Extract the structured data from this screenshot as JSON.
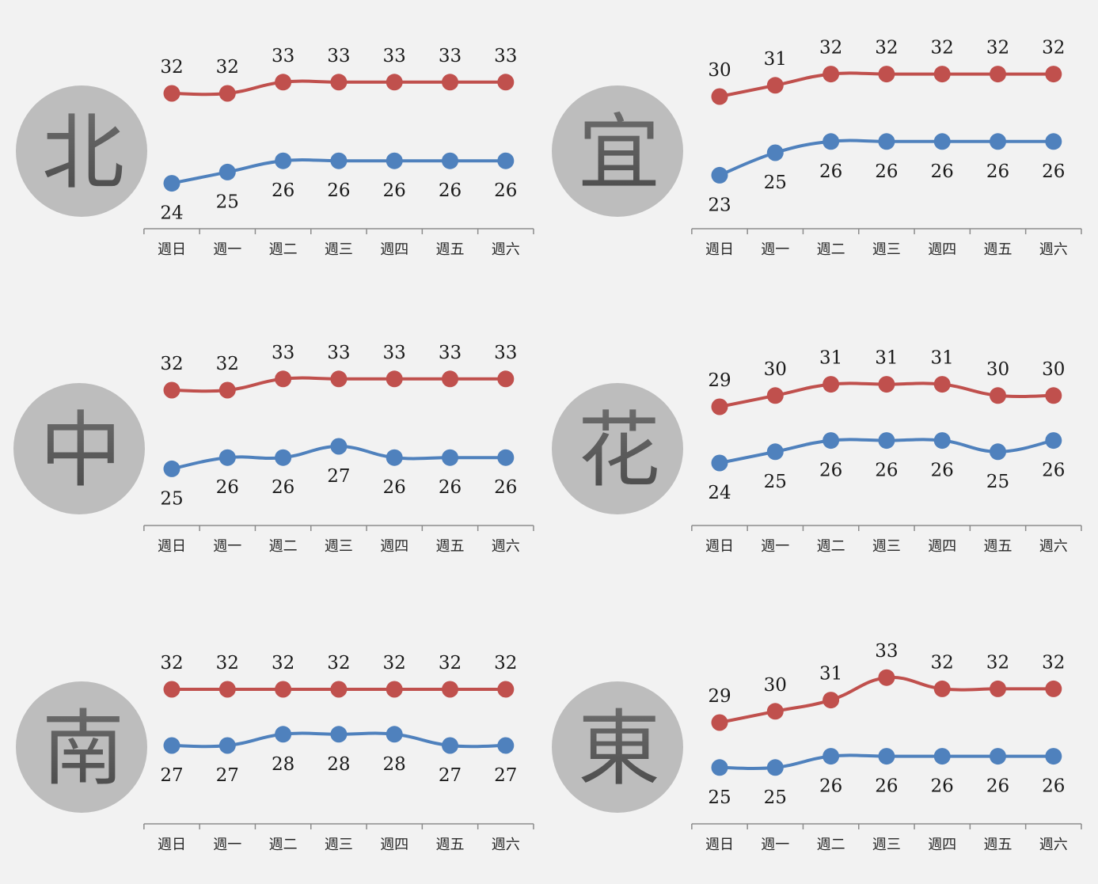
{
  "chart_data": [
    {
      "type": "line",
      "region": "北",
      "categories": [
        "週日",
        "週一",
        "週二",
        "週三",
        "週四",
        "週五",
        "週六"
      ],
      "series": [
        {
          "color": "#c0504d",
          "values": [
            32,
            32,
            33,
            33,
            33,
            33,
            33
          ]
        },
        {
          "color": "#4f81bd",
          "values": [
            24,
            25,
            26,
            26,
            26,
            26,
            26
          ]
        }
      ]
    },
    {
      "type": "line",
      "region": "宜",
      "categories": [
        "週日",
        "週一",
        "週二",
        "週三",
        "週四",
        "週五",
        "週六"
      ],
      "series": [
        {
          "color": "#c0504d",
          "values": [
            30,
            31,
            32,
            32,
            32,
            32,
            32
          ]
        },
        {
          "color": "#4f81bd",
          "values": [
            23,
            25,
            26,
            26,
            26,
            26,
            26
          ]
        }
      ]
    },
    {
      "type": "line",
      "region": "中",
      "categories": [
        "週日",
        "週一",
        "週二",
        "週三",
        "週四",
        "週五",
        "週六"
      ],
      "series": [
        {
          "color": "#c0504d",
          "values": [
            32,
            32,
            33,
            33,
            33,
            33,
            33
          ]
        },
        {
          "color": "#4f81bd",
          "values": [
            25,
            26,
            26,
            27,
            26,
            26,
            26
          ]
        }
      ]
    },
    {
      "type": "line",
      "region": "花",
      "categories": [
        "週日",
        "週一",
        "週二",
        "週三",
        "週四",
        "週五",
        "週六"
      ],
      "series": [
        {
          "color": "#c0504d",
          "values": [
            29,
            30,
            31,
            31,
            31,
            30,
            30
          ]
        },
        {
          "color": "#4f81bd",
          "values": [
            24,
            25,
            26,
            26,
            26,
            25,
            26
          ]
        }
      ]
    },
    {
      "type": "line",
      "region": "南",
      "categories": [
        "週日",
        "週一",
        "週二",
        "週三",
        "週四",
        "週五",
        "週六"
      ],
      "series": [
        {
          "color": "#c0504d",
          "values": [
            32,
            32,
            32,
            32,
            32,
            32,
            32
          ]
        },
        {
          "color": "#4f81bd",
          "values": [
            27,
            27,
            28,
            28,
            28,
            27,
            27
          ]
        }
      ]
    },
    {
      "type": "line",
      "region": "東",
      "categories": [
        "週日",
        "週一",
        "週二",
        "週三",
        "週四",
        "週五",
        "週六"
      ],
      "series": [
        {
          "color": "#c0504d",
          "values": [
            29,
            30,
            31,
            33,
            32,
            32,
            32
          ]
        },
        {
          "color": "#4f81bd",
          "values": [
            25,
            25,
            26,
            26,
            26,
            26,
            26
          ]
        }
      ]
    }
  ]
}
